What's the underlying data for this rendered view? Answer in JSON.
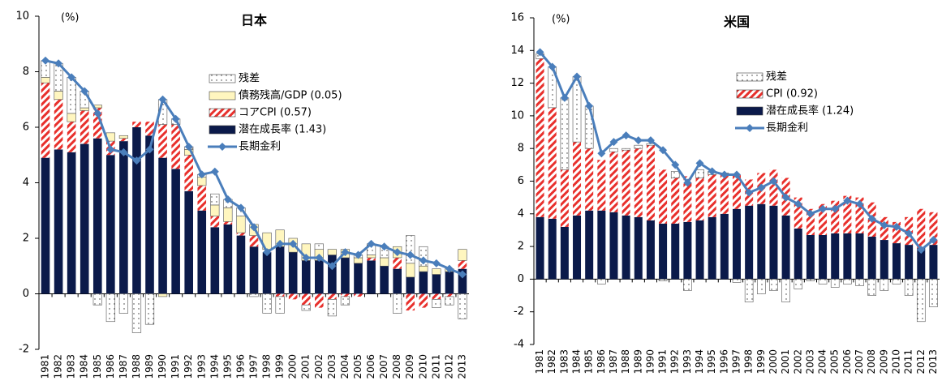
{
  "chart_data": [
    {
      "type": "bar",
      "title": "日本",
      "annotation": "(%)",
      "categories": [
        "1981",
        "1982",
        "1983",
        "1984",
        "1985",
        "1986",
        "1987",
        "1988",
        "1989",
        "1990",
        "1991",
        "1992",
        "1993",
        "1994",
        "1995",
        "1996",
        "1997",
        "1998",
        "1999",
        "2000",
        "2001",
        "2002",
        "2003",
        "2004",
        "2005",
        "2006",
        "2007",
        "2008",
        "2009",
        "2010",
        "2011",
        "2012",
        "2013"
      ],
      "ylim": [
        -2,
        10
      ],
      "yticks": [
        -2,
        0,
        2,
        4,
        6,
        8,
        10
      ],
      "series": [
        {
          "name": "潜在成長率 (1.43)",
          "type": "bar",
          "color": "#0b1a4a",
          "values": [
            4.9,
            5.2,
            5.1,
            5.4,
            5.6,
            5.0,
            5.5,
            6.0,
            5.7,
            4.9,
            4.5,
            3.7,
            3.0,
            2.4,
            2.5,
            2.1,
            1.7,
            1.5,
            1.7,
            1.5,
            1.2,
            1.2,
            1.4,
            1.3,
            1.1,
            1.2,
            1.0,
            0.9,
            0.6,
            0.8,
            0.7,
            0.8,
            0.9
          ]
        },
        {
          "name": "コアCPI (0.57)",
          "type": "bar",
          "color": "#e8302c",
          "values": [
            2.7,
            1.8,
            1.1,
            1.2,
            1.1,
            0.5,
            0.1,
            0.2,
            0.5,
            1.2,
            1.6,
            1.3,
            0.9,
            0.4,
            0.1,
            0.1,
            0.4,
            0.1,
            -0.1,
            -0.2,
            -0.4,
            -0.5,
            -0.2,
            -0.1,
            -0.1,
            0.1,
            0.0,
            0.4,
            -0.6,
            -0.5,
            -0.2,
            -0.1,
            0.3
          ]
        },
        {
          "name": "債務残高/GDP (0.05)",
          "type": "bar",
          "color": "#fff6bf",
          "values": [
            0.2,
            0.3,
            0.3,
            0.1,
            0.1,
            0.3,
            0.1,
            0.0,
            0.0,
            -0.1,
            0.0,
            0.2,
            0.3,
            0.4,
            0.5,
            0.6,
            0.4,
            0.6,
            0.6,
            0.5,
            0.6,
            0.4,
            0.2,
            0.3,
            0.2,
            0.1,
            0.3,
            0.4,
            0.5,
            0.2,
            0.2,
            0.1,
            0.4
          ]
        },
        {
          "name": "残差",
          "type": "bar",
          "color": "#ffffff",
          "values": [
            0.6,
            1.0,
            1.3,
            0.6,
            -0.4,
            -1.0,
            -0.7,
            -1.4,
            -1.1,
            0.9,
            0.2,
            0.1,
            0.1,
            0.4,
            0.3,
            0.3,
            -0.1,
            -0.7,
            -0.6,
            0.0,
            -0.2,
            0.2,
            -0.6,
            -0.3,
            0.1,
            0.4,
            0.4,
            -0.7,
            1.0,
            0.7,
            -0.3,
            -0.3,
            -0.9
          ]
        },
        {
          "name": "長期金利",
          "type": "line",
          "color": "#4a7ebb",
          "values": [
            8.4,
            8.3,
            7.8,
            7.3,
            6.5,
            5.2,
            5.1,
            4.8,
            5.2,
            7.0,
            6.3,
            5.3,
            4.3,
            4.4,
            3.4,
            3.1,
            2.4,
            1.5,
            1.8,
            1.8,
            1.3,
            1.3,
            1.0,
            1.5,
            1.4,
            1.8,
            1.7,
            1.5,
            1.4,
            1.2,
            1.1,
            0.9,
            0.7
          ]
        }
      ]
    },
    {
      "type": "bar",
      "title": "米国",
      "annotation": "(%)",
      "categories": [
        "1981",
        "1982",
        "1983",
        "1984",
        "1985",
        "1986",
        "1987",
        "1988",
        "1989",
        "1990",
        "1991",
        "1992",
        "1993",
        "1994",
        "1995",
        "1996",
        "1997",
        "1998",
        "1999",
        "2000",
        "2001",
        "2002",
        "2003",
        "2004",
        "2005",
        "2006",
        "2007",
        "2008",
        "2009",
        "2010",
        "2011",
        "2012",
        "2013"
      ],
      "ylim": [
        -4,
        16
      ],
      "yticks": [
        -4,
        -2,
        0,
        2,
        4,
        6,
        8,
        10,
        12,
        14,
        16
      ],
      "series": [
        {
          "name": "潜在成長率 (1.24)",
          "type": "bar",
          "color": "#0b1a4a",
          "values": [
            3.8,
            3.7,
            3.2,
            3.9,
            4.2,
            4.2,
            4.1,
            3.9,
            3.8,
            3.6,
            3.4,
            3.4,
            3.5,
            3.6,
            3.8,
            4.0,
            4.3,
            4.5,
            4.6,
            4.5,
            3.9,
            3.1,
            2.7,
            2.7,
            2.8,
            2.8,
            2.8,
            2.6,
            2.4,
            2.2,
            2.1,
            1.9,
            2.1
          ]
        },
        {
          "name": "CPI (0.92)",
          "type": "bar",
          "color": "#e8302c",
          "values": [
            9.7,
            6.8,
            3.5,
            4.5,
            3.8,
            3.1,
            3.7,
            4.0,
            4.2,
            4.6,
            3.3,
            2.8,
            2.8,
            2.6,
            2.6,
            2.4,
            2.1,
            1.6,
            1.9,
            2.2,
            2.3,
            1.9,
            1.6,
            1.9,
            2.0,
            2.3,
            2.2,
            2.1,
            1.4,
            1.3,
            1.7,
            2.4,
            2.0
          ]
        },
        {
          "name": "残差",
          "type": "bar",
          "color": "#ffffff",
          "values": [
            0.3,
            2.5,
            4.4,
            4.0,
            2.6,
            -0.3,
            0.2,
            0.1,
            0.2,
            0.1,
            -0.1,
            0.4,
            -0.7,
            0.5,
            0.2,
            0.1,
            -0.2,
            -1.4,
            -0.9,
            -0.7,
            -1.4,
            -0.6,
            -0.1,
            -0.3,
            -0.5,
            -0.3,
            -0.4,
            -1.0,
            -0.7,
            -0.3,
            -1.0,
            -2.6,
            -1.7
          ]
        },
        {
          "name": "長期金利",
          "type": "line",
          "color": "#4a7ebb",
          "values": [
            13.9,
            13.0,
            11.1,
            12.4,
            10.6,
            7.7,
            8.4,
            8.8,
            8.5,
            8.5,
            7.9,
            7.0,
            5.9,
            7.1,
            6.6,
            6.4,
            6.4,
            5.3,
            5.6,
            6.0,
            5.0,
            4.6,
            4.0,
            4.3,
            4.3,
            4.8,
            4.6,
            3.7,
            3.3,
            3.2,
            2.8,
            1.8,
            2.4
          ]
        }
      ]
    }
  ]
}
